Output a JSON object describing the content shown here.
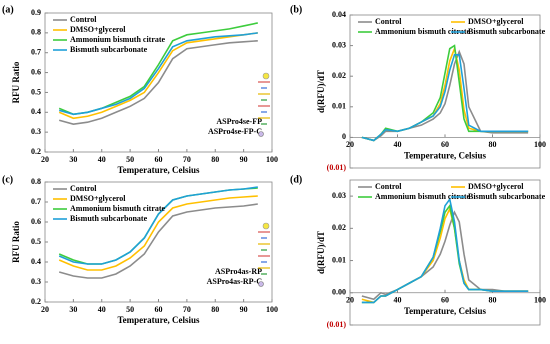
{
  "chart_data": [
    {
      "type": "line",
      "label": "(a)",
      "xlabel": "Temperature, Celsius",
      "ylabel": "RFU Ratio",
      "x": [
        25,
        30,
        35,
        40,
        45,
        50,
        55,
        60,
        65,
        70,
        75,
        80,
        85,
        90,
        95
      ],
      "xlim": [
        20,
        100
      ],
      "xticks": [
        20,
        30,
        40,
        50,
        60,
        70,
        80,
        90,
        100
      ],
      "ylim": [
        0.2,
        0.9
      ],
      "yticks": [
        0.2,
        0.3,
        0.4,
        0.5,
        0.6,
        0.7,
        0.8,
        0.9
      ],
      "legend_columns": 1,
      "annotations": [
        "ASPro4se-FP",
        "ASPro4se-FP-C"
      ],
      "series": [
        {
          "name": "Control",
          "color": "#8c8c8c",
          "values": [
            0.36,
            0.34,
            0.35,
            0.37,
            0.4,
            0.43,
            0.47,
            0.55,
            0.67,
            0.72,
            0.73,
            0.74,
            0.75,
            0.755,
            0.76
          ]
        },
        {
          "name": "DMSO+glycerol",
          "color": "#ffc000",
          "values": [
            0.4,
            0.37,
            0.38,
            0.4,
            0.43,
            0.46,
            0.5,
            0.6,
            0.71,
            0.75,
            0.76,
            0.77,
            0.78,
            0.79,
            0.8
          ]
        },
        {
          "name": "Ammonium bismuth citrate",
          "color": "#3dcc3d",
          "values": [
            0.42,
            0.39,
            0.4,
            0.42,
            0.45,
            0.48,
            0.53,
            0.64,
            0.76,
            0.79,
            0.8,
            0.81,
            0.82,
            0.835,
            0.85
          ]
        },
        {
          "name": "Bismuth subcarbonate",
          "color": "#1fa0d8",
          "values": [
            0.41,
            0.39,
            0.4,
            0.42,
            0.44,
            0.47,
            0.52,
            0.62,
            0.73,
            0.76,
            0.77,
            0.78,
            0.785,
            0.79,
            0.8
          ]
        }
      ]
    },
    {
      "type": "line",
      "label": "(b)",
      "xlabel": "Temperature, Celsius",
      "ylabel": "d(RFU)/dT",
      "x": [
        25,
        30,
        33,
        35,
        40,
        45,
        50,
        55,
        58,
        60,
        62,
        64,
        66,
        68,
        70,
        75,
        80,
        85,
        90,
        95
      ],
      "xlim": [
        20,
        100
      ],
      "xticks": [
        20,
        40,
        60,
        80,
        100
      ],
      "ylim": [
        -0.01,
        0.04
      ],
      "yticks": [
        {
          "value": -0.01,
          "label": "(0.01)"
        },
        0,
        0.01,
        0.02,
        0.03,
        0.04
      ],
      "negative_tick_color": "#c00000",
      "x_axis_at_zero": true,
      "legend_columns": 2,
      "series": [
        {
          "name": "Control",
          "color": "#8c8c8c",
          "values": [
            0,
            -0.001,
            0.0005,
            0.002,
            0.002,
            0.003,
            0.004,
            0.006,
            0.008,
            0.011,
            0.017,
            0.024,
            0.028,
            0.024,
            0.01,
            0.002,
            0.0015,
            0.0015,
            0.0015,
            0.0015
          ]
        },
        {
          "name": "DMSO+glycerol",
          "color": "#ffc000",
          "values": [
            0,
            -0.001,
            0.001,
            0.0025,
            0.002,
            0.003,
            0.005,
            0.007,
            0.011,
            0.017,
            0.025,
            0.029,
            0.022,
            0.009,
            0.003,
            0.002,
            0.002,
            0.002,
            0.002,
            0.002
          ]
        },
        {
          "name": "Ammonium bismuth citrate",
          "color": "#3dcc3d",
          "values": [
            0,
            -0.001,
            0.001,
            0.003,
            0.002,
            0.003,
            0.005,
            0.008,
            0.013,
            0.021,
            0.029,
            0.03,
            0.018,
            0.006,
            0.002,
            0.002,
            0.002,
            0.002,
            0.002,
            0.002
          ]
        },
        {
          "name": "Bismuth subcarbonate",
          "color": "#1fa0d8",
          "values": [
            0,
            -0.001,
            0.001,
            0.0025,
            0.002,
            0.003,
            0.005,
            0.007,
            0.01,
            0.015,
            0.022,
            0.027,
            0.027,
            0.016,
            0.004,
            0.002,
            0.002,
            0.002,
            0.002,
            0.002
          ]
        }
      ]
    },
    {
      "type": "line",
      "label": "(c)",
      "xlabel": "Temperature, Celsius",
      "ylabel": "RFU Ratio",
      "x": [
        25,
        30,
        35,
        40,
        45,
        50,
        55,
        60,
        65,
        70,
        75,
        80,
        85,
        90,
        95
      ],
      "xlim": [
        20,
        100
      ],
      "xticks": [
        20,
        30,
        40,
        50,
        60,
        70,
        80,
        90,
        100
      ],
      "ylim": [
        0.2,
        0.8
      ],
      "yticks": [
        0.2,
        0.3,
        0.4,
        0.5,
        0.6,
        0.7,
        0.8
      ],
      "legend_columns": 1,
      "annotations": [
        "ASPro4as-RP",
        "ASPro4as-RP-C"
      ],
      "series": [
        {
          "name": "Control",
          "color": "#8c8c8c",
          "values": [
            0.35,
            0.33,
            0.32,
            0.32,
            0.34,
            0.38,
            0.44,
            0.55,
            0.63,
            0.65,
            0.66,
            0.67,
            0.675,
            0.68,
            0.69
          ]
        },
        {
          "name": "DMSO+glycerol",
          "color": "#ffc000",
          "values": [
            0.41,
            0.38,
            0.36,
            0.36,
            0.38,
            0.42,
            0.48,
            0.6,
            0.67,
            0.69,
            0.7,
            0.71,
            0.72,
            0.725,
            0.73
          ]
        },
        {
          "name": "Ammonium bismuth citrate",
          "color": "#3dcc3d",
          "values": [
            0.44,
            0.41,
            0.39,
            0.39,
            0.41,
            0.45,
            0.52,
            0.64,
            0.71,
            0.73,
            0.74,
            0.75,
            0.76,
            0.765,
            0.77
          ]
        },
        {
          "name": "Bismuth subcarbonate",
          "color": "#1fa0d8",
          "values": [
            0.43,
            0.4,
            0.39,
            0.39,
            0.41,
            0.45,
            0.52,
            0.64,
            0.71,
            0.73,
            0.74,
            0.75,
            0.76,
            0.765,
            0.775
          ]
        }
      ]
    },
    {
      "type": "line",
      "label": "(d)",
      "xlabel": "Temperature, Celsius",
      "ylabel": "d(RFU)/dT",
      "x": [
        25,
        30,
        33,
        35,
        40,
        45,
        50,
        55,
        58,
        60,
        62,
        64,
        66,
        68,
        70,
        75,
        80,
        85,
        90,
        95
      ],
      "xlim": [
        20,
        100
      ],
      "xticks": [
        20,
        40,
        60,
        80,
        100
      ],
      "ylim": [
        -0.01,
        0.035
      ],
      "yticks": [
        {
          "value": -0.01,
          "label": "(0.01)"
        },
        {
          "value": 0,
          "label": "0.00"
        },
        0.01,
        0.02,
        0.03
      ],
      "negative_tick_color": "#c00000",
      "x_axis_at_zero": true,
      "legend_columns": 2,
      "series": [
        {
          "name": "Control",
          "color": "#8c8c8c",
          "values": [
            -0.001,
            -0.002,
            0,
            -0.0005,
            0.001,
            0.003,
            0.005,
            0.008,
            0.012,
            0.016,
            0.021,
            0.025,
            0.022,
            0.012,
            0.004,
            0.001,
            0.001,
            0.0005,
            0.0005,
            0.0005
          ]
        },
        {
          "name": "DMSO+glycerol",
          "color": "#ffc000",
          "values": [
            -0.002,
            -0.003,
            -0.001,
            -0.001,
            0.001,
            0.003,
            0.005,
            0.01,
            0.017,
            0.023,
            0.026,
            0.02,
            0.01,
            0.004,
            0.001,
            0.001,
            0.0005,
            0.0005,
            0.0005,
            0.0005
          ]
        },
        {
          "name": "Ammonium bismuth citrate",
          "color": "#3dcc3d",
          "values": [
            -0.003,
            -0.003,
            -0.001,
            -0.001,
            0.001,
            0.003,
            0.005,
            0.011,
            0.019,
            0.025,
            0.027,
            0.02,
            0.009,
            0.003,
            0.001,
            0.001,
            0.0005,
            0.0005,
            0.0005,
            0.0005
          ]
        },
        {
          "name": "Bismuth subcarbonate",
          "color": "#1fa0d8",
          "values": [
            -0.003,
            -0.003,
            -0.001,
            -0.001,
            0.001,
            0.003,
            0.005,
            0.011,
            0.02,
            0.027,
            0.029,
            0.022,
            0.01,
            0.003,
            0.001,
            0.001,
            0.0005,
            0.0005,
            0.0005,
            0.0005
          ]
        }
      ]
    }
  ]
}
